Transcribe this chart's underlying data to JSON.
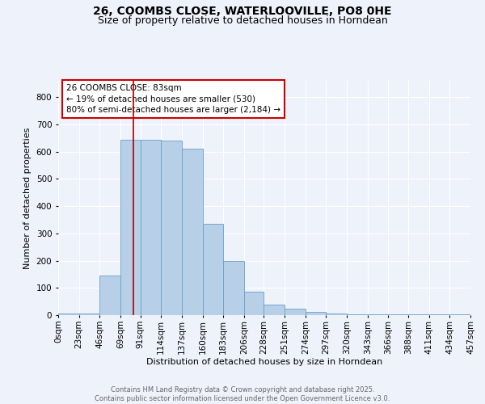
{
  "title": "26, COOMBS CLOSE, WATERLOOVILLE, PO8 0HE",
  "subtitle": "Size of property relative to detached houses in Horndean",
  "xlabel": "Distribution of detached houses by size in Horndean",
  "ylabel": "Number of detached properties",
  "background_color": "#eef2fb",
  "bar_color": "#b8cfe8",
  "bar_edge_color": "#6a9fc8",
  "grid_color": "#ffffff",
  "marker_line_color": "#aa0000",
  "bin_edges": [
    0,
    23,
    46,
    69,
    91,
    114,
    137,
    160,
    183,
    206,
    228,
    251,
    274,
    297,
    320,
    343,
    366,
    388,
    411,
    434,
    457
  ],
  "bin_labels": [
    "0sqm",
    "23sqm",
    "46sqm",
    "69sqm",
    "91sqm",
    "114sqm",
    "137sqm",
    "160sqm",
    "183sqm",
    "206sqm",
    "228sqm",
    "251sqm",
    "274sqm",
    "297sqm",
    "320sqm",
    "343sqm",
    "366sqm",
    "388sqm",
    "411sqm",
    "434sqm",
    "457sqm"
  ],
  "bar_heights": [
    5,
    5,
    145,
    645,
    645,
    640,
    610,
    335,
    198,
    85,
    40,
    25,
    12,
    5,
    2,
    2,
    2,
    2,
    2,
    2
  ],
  "property_size": 83,
  "annotation_text": "26 COOMBS CLOSE: 83sqm\n← 19% of detached houses are smaller (530)\n80% of semi-detached houses are larger (2,184) →",
  "annotation_box_color": "#ffffff",
  "annotation_box_edge": "#cc0000",
  "ylim": [
    0,
    860
  ],
  "yticks": [
    0,
    100,
    200,
    300,
    400,
    500,
    600,
    700,
    800
  ],
  "footer_text": "Contains HM Land Registry data © Crown copyright and database right 2025.\nContains public sector information licensed under the Open Government Licence v3.0.",
  "title_fontsize": 10,
  "subtitle_fontsize": 9,
  "axis_label_fontsize": 8,
  "tick_fontsize": 7.5,
  "annotation_fontsize": 7.5,
  "footer_fontsize": 6.0
}
